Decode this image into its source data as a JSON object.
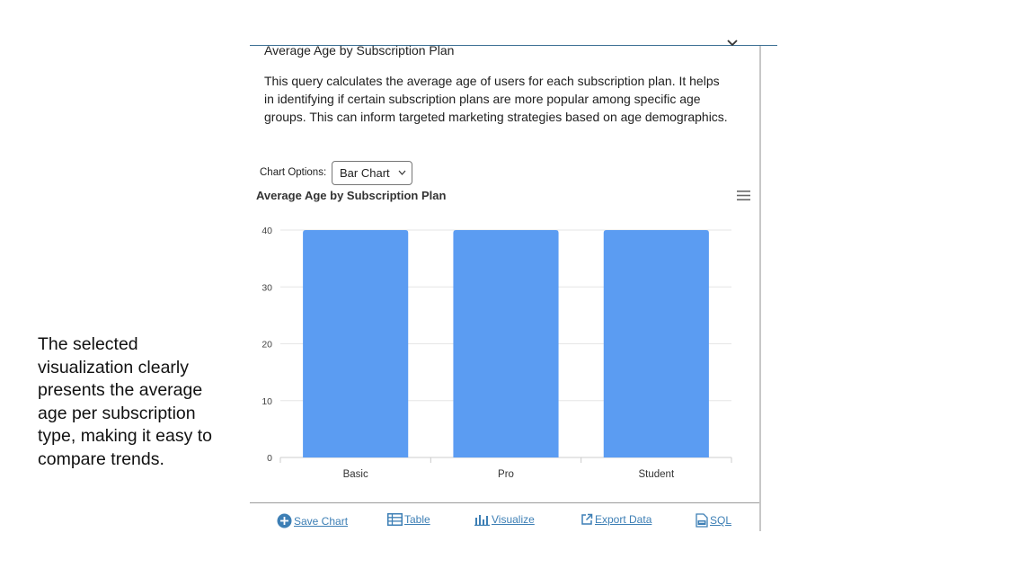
{
  "caption": "The selected visualization clearly presents the average age per subscription type, making it easy to compare trends.",
  "card": {
    "title": "Average Age by Subscription Plan",
    "description": "This query calculates the average age of users for each subscription plan. It helps in identifying if certain subscription plans are more popular among specific age groups. This can inform targeted marketing strategies based on age demographics.",
    "collapse_icon": "chevron-down-icon"
  },
  "chart_options": {
    "label": "Chart Options:",
    "selected": "Bar Chart"
  },
  "chart_menu_icon": "hamburger-menu-icon",
  "chart_data": {
    "type": "bar",
    "title": "Average Age by Subscription Plan",
    "categories": [
      "Basic",
      "Pro",
      "Student"
    ],
    "values": [
      40,
      40,
      40
    ],
    "xlabel": "",
    "ylabel": "",
    "ylim": [
      0,
      40
    ],
    "yticks": [
      0,
      10,
      20,
      30,
      40
    ],
    "grid": true,
    "legend": "none",
    "bar_color": "#5b9cf2"
  },
  "actions": [
    {
      "label": "Save Chart",
      "icon": "plus-circle-icon"
    },
    {
      "label": "Table",
      "icon": "table-icon"
    },
    {
      "label": "Visualize",
      "icon": "bar-chart-icon"
    },
    {
      "label": "Export Data",
      "icon": "external-link-icon"
    },
    {
      "label": "SQL",
      "icon": "sql-file-icon"
    }
  ],
  "colors": {
    "accent": "#3d7fb5",
    "bar": "#5b9cf2",
    "rule": "#3b6f93"
  }
}
